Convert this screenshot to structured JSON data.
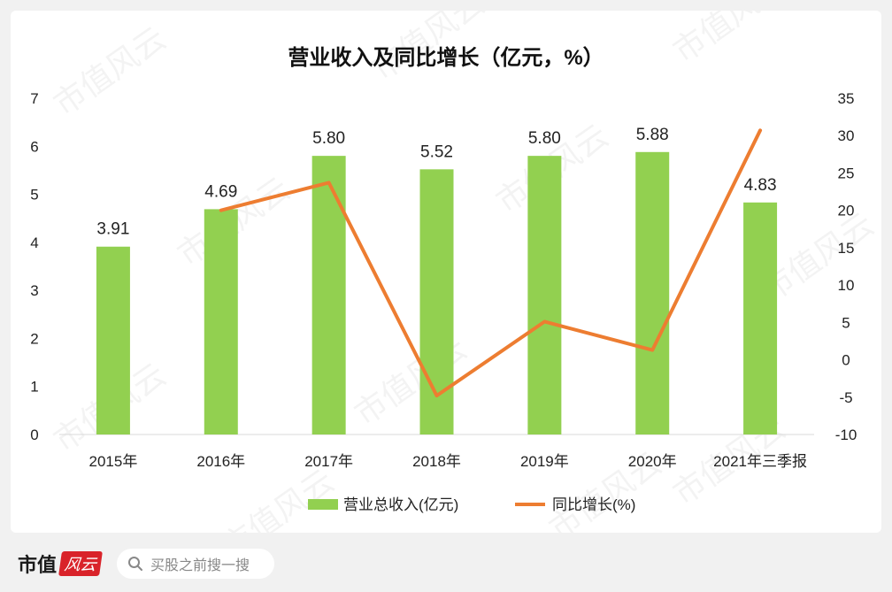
{
  "chart_data": {
    "type": "bar+line",
    "title": "营业收入及同比增长（亿元，%）",
    "categories": [
      "2015年",
      "2016年",
      "2017年",
      "2018年",
      "2019年",
      "2020年",
      "2021年三季报"
    ],
    "series": [
      {
        "name": "营业总收入(亿元)",
        "type": "bar",
        "axis": "left",
        "color": "#92d050",
        "values": [
          3.91,
          4.69,
          5.8,
          5.52,
          5.8,
          5.88,
          4.83
        ],
        "labels": [
          "3.91",
          "4.69",
          "5.80",
          "5.52",
          "5.80",
          "5.88",
          "4.83"
        ]
      },
      {
        "name": "同比增长(%)",
        "type": "line",
        "axis": "right",
        "color": "#ed7d31",
        "values": [
          null,
          20.0,
          23.7,
          -4.8,
          5.1,
          1.3,
          30.7
        ]
      }
    ],
    "y_left": {
      "range": [
        0,
        7
      ],
      "ticks": [
        "0",
        "1",
        "2",
        "3",
        "4",
        "5",
        "6",
        "7"
      ]
    },
    "y_right": {
      "range": [
        -10,
        35
      ],
      "ticks": [
        "-10",
        "-5",
        "0",
        "5",
        "10",
        "15",
        "20",
        "25",
        "30",
        "35"
      ]
    },
    "grid": false,
    "legend_position": "bottom"
  },
  "watermark": "市值风云",
  "footer": {
    "logo_main": "市值",
    "logo_script": "风云",
    "search_icon": "search-icon",
    "search_placeholder": "买股之前搜一搜"
  }
}
